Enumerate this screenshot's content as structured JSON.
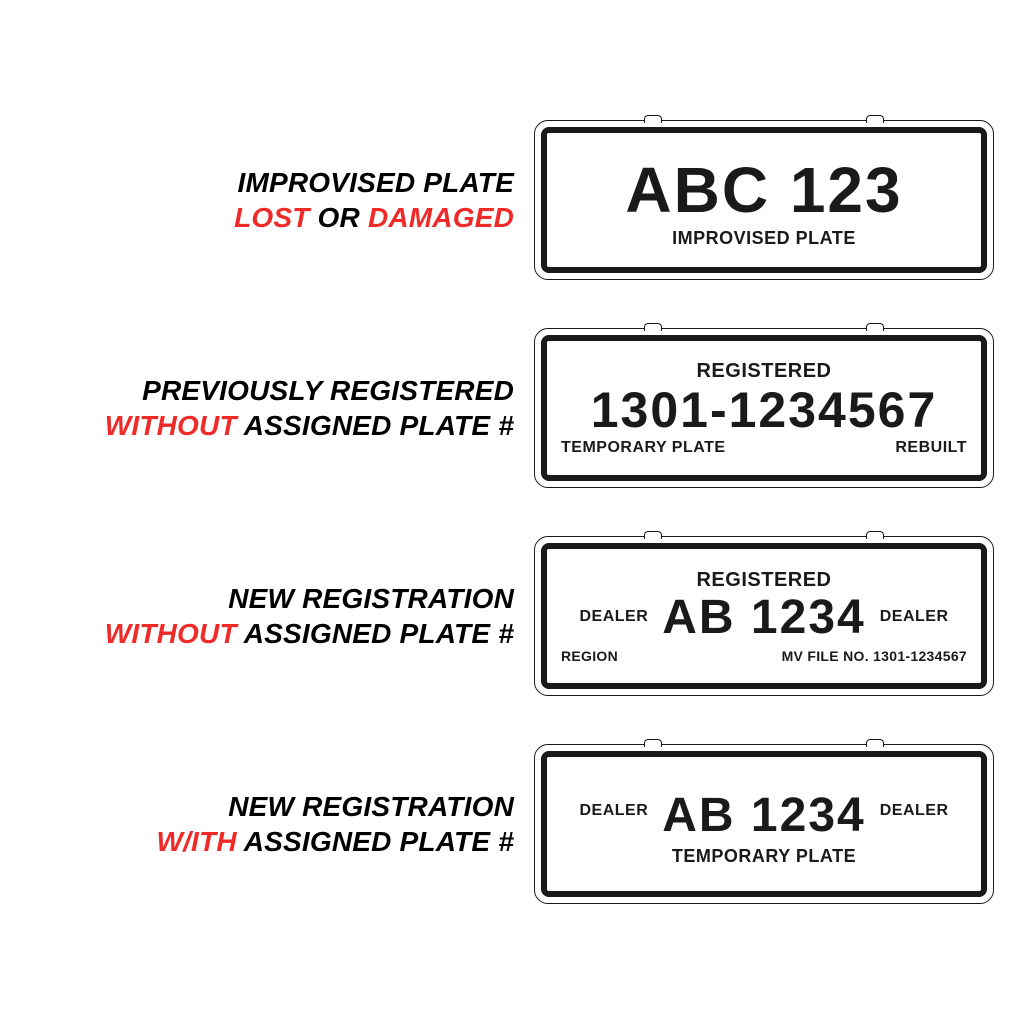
{
  "colors": {
    "black": "#1a1a1a",
    "red": "#ee2b28",
    "white": "#ffffff"
  },
  "rows": [
    {
      "desc_line1": "IMPROVISED PLATE",
      "desc_line2_pre": "",
      "desc_line2_red1": "LOST",
      "desc_line2_mid": " OR ",
      "desc_line2_red2": "DAMAGED",
      "desc_line2_post": "",
      "plate": {
        "variant": 1,
        "main": "ABC 123",
        "bottom_center": "IMPROVISED PLATE"
      }
    },
    {
      "desc_line1": "PREVIOUSLY REGISTERED",
      "desc_line2_pre": "",
      "desc_line2_red1": "WITHOUT",
      "desc_line2_mid": "",
      "desc_line2_red2": "",
      "desc_line2_post": " ASSIGNED PLATE #",
      "plate": {
        "variant": 2,
        "top": "REGISTERED",
        "main": "1301-1234567",
        "bottom_left": "TEMPORARY PLATE",
        "bottom_right": "REBUILT"
      }
    },
    {
      "desc_line1": "NEW REGISTRATION",
      "desc_line2_pre": "",
      "desc_line2_red1": "WITHOUT",
      "desc_line2_mid": "",
      "desc_line2_red2": "",
      "desc_line2_post": " ASSIGNED PLATE #",
      "plate": {
        "variant": 3,
        "top": "REGISTERED",
        "side_left": "DEALER",
        "main": "AB 1234",
        "side_right": "DEALER",
        "bottom_left": "REGION",
        "bottom_right": "MV FILE NO. 1301-1234567"
      }
    },
    {
      "desc_line1": "NEW REGISTRATION",
      "desc_line2_pre": "",
      "desc_line2_red1": "W/ITH",
      "desc_line2_mid": "",
      "desc_line2_red2": "",
      "desc_line2_post": " ASSIGNED PLATE #",
      "plate": {
        "variant": 4,
        "side_left": "DEALER",
        "main": "AB 1234",
        "side_right": "DEALER",
        "bottom_center": "TEMPORARY PLATE"
      }
    }
  ]
}
